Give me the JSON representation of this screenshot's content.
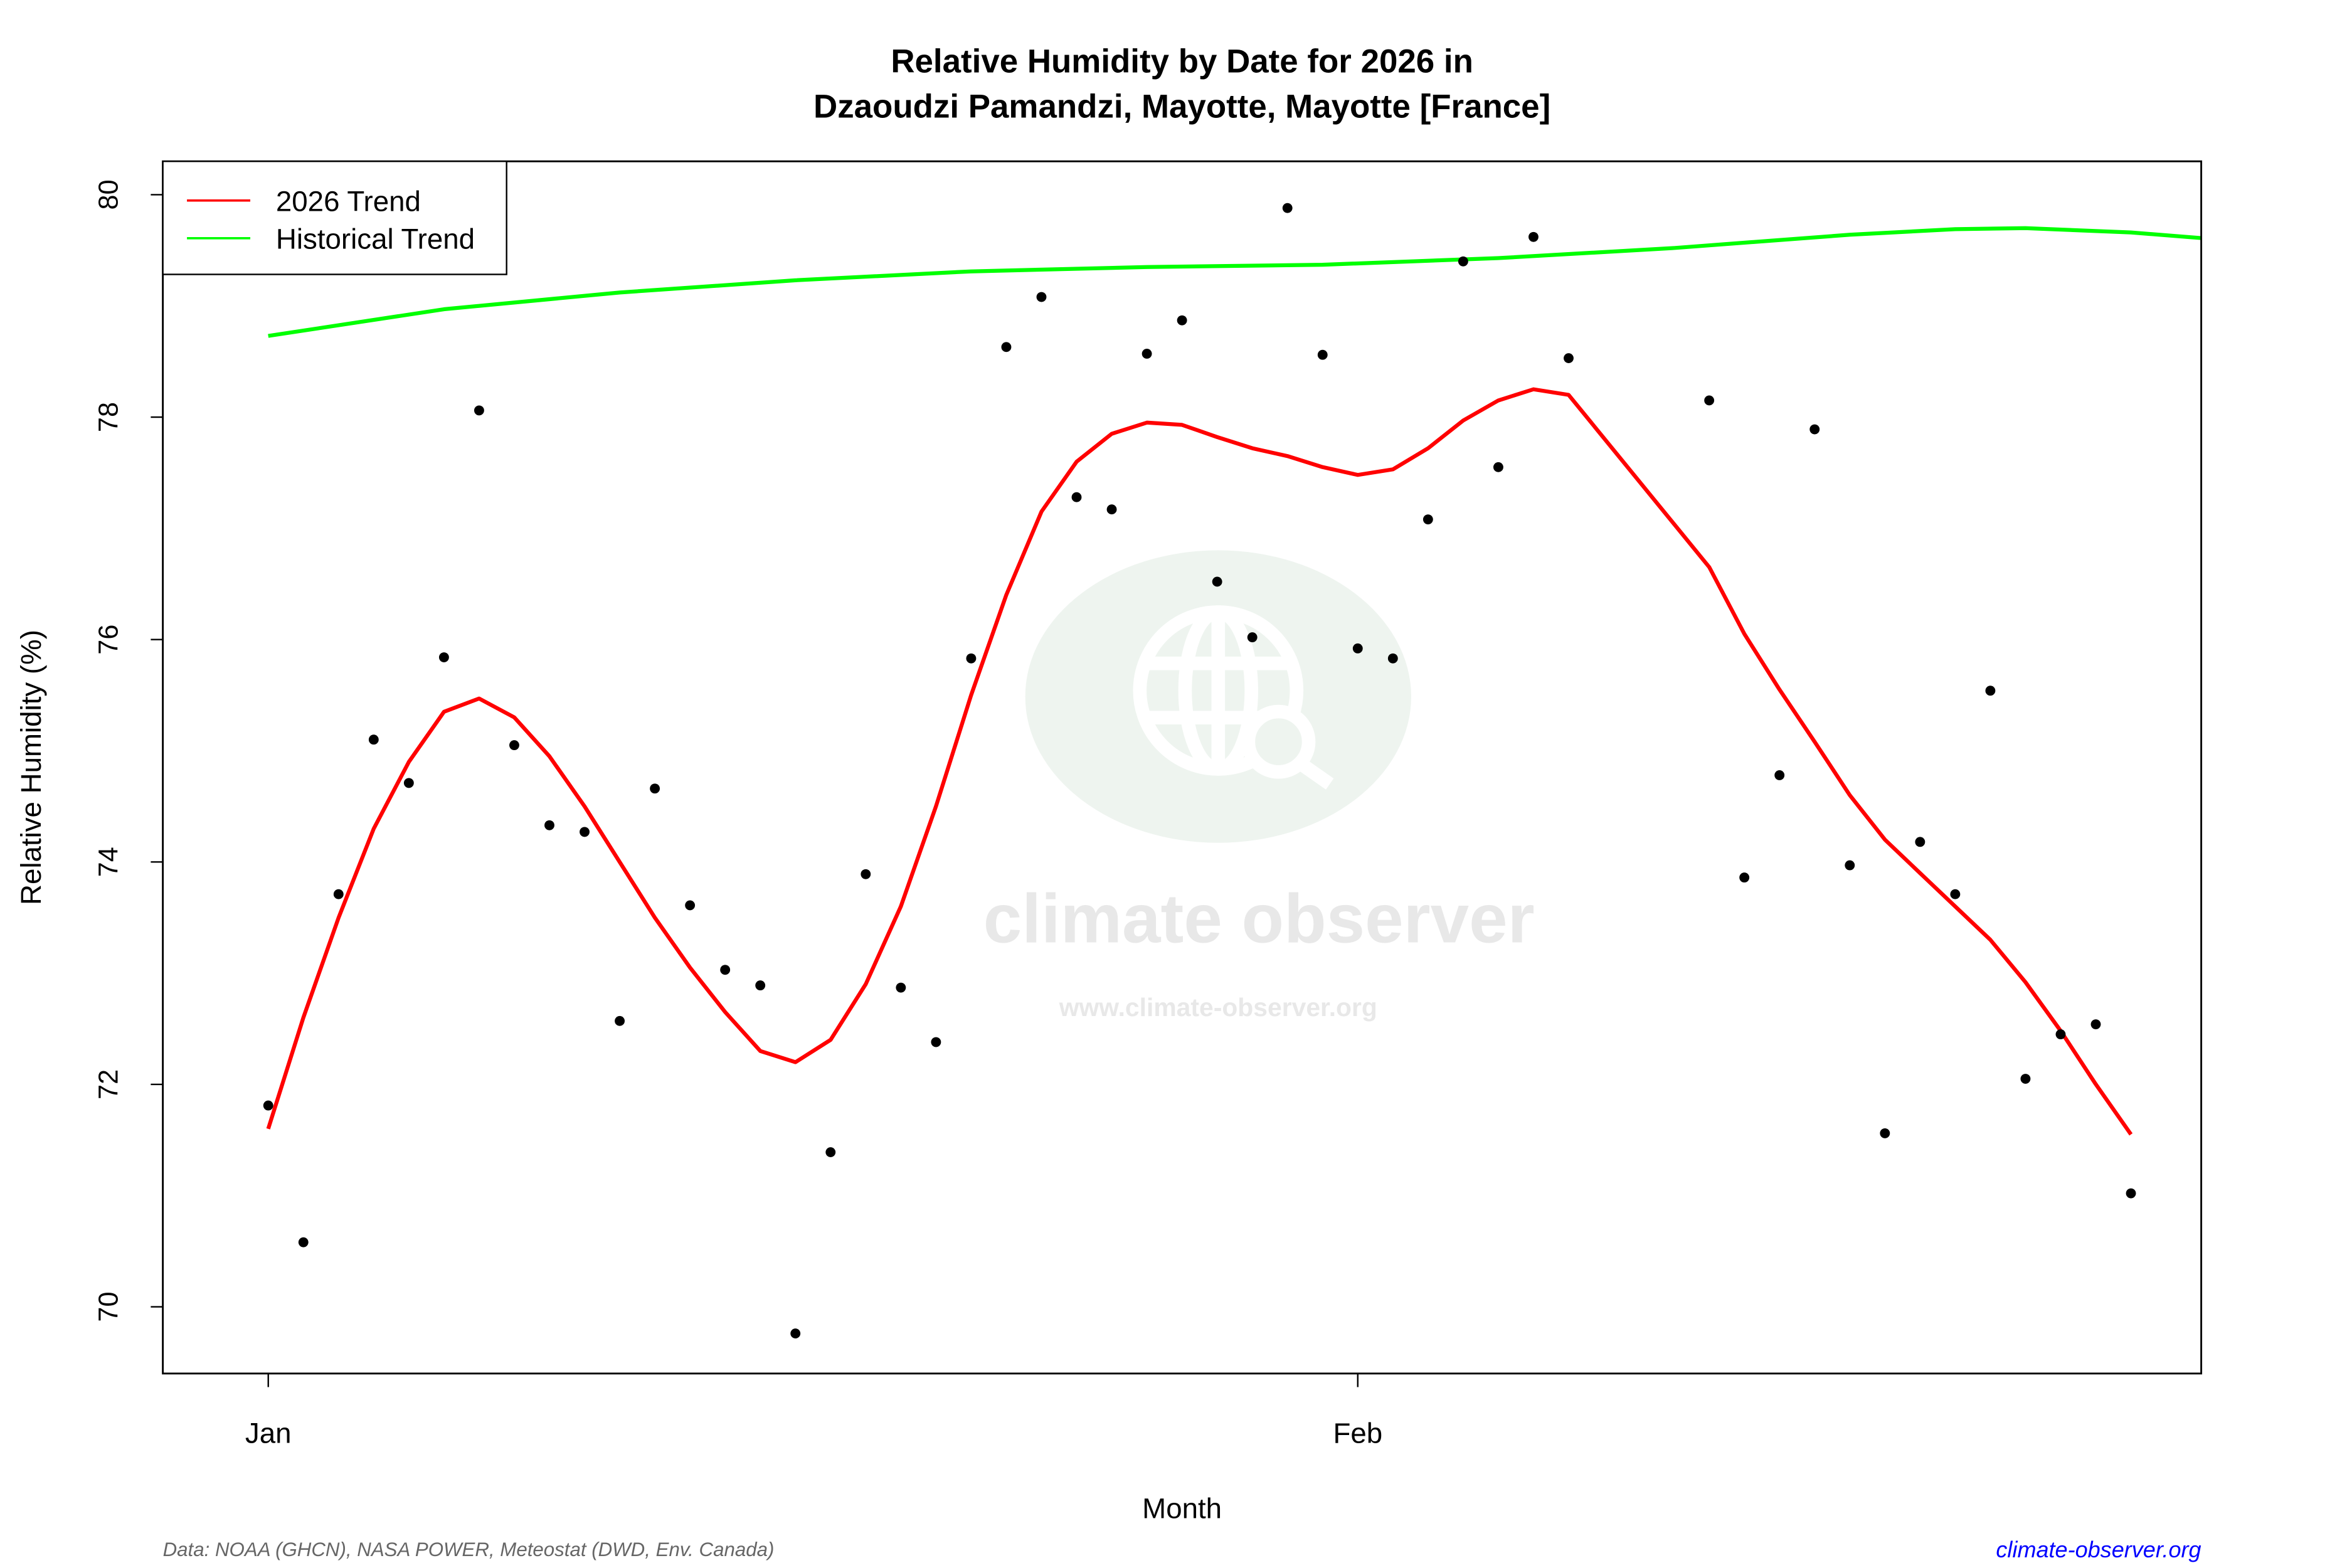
{
  "chart_data": {
    "type": "scatter",
    "title_line1": "Relative Humidity by Date for 2026 in",
    "title_line2": "Dzaoudzi Pamandzi, Mayotte, Mayotte [France]",
    "xlabel": "Month",
    "ylabel": "Relative Humidity (%)",
    "ylim": [
      69.4,
      80.3
    ],
    "xlim": [
      "2025-12-29",
      "2026-02-25"
    ],
    "y_ticks": [
      "70",
      "72",
      "74",
      "76",
      "78",
      "80"
    ],
    "x_ticks": [
      {
        "label": "Jan",
        "date": "2026-01-01"
      },
      {
        "label": "Feb",
        "date": "2026-02-01"
      }
    ],
    "grid": false,
    "legend_position": "top-left",
    "legend": [
      {
        "label": "2026 Trend",
        "color": "#ff0000"
      },
      {
        "label": "Historical Trend",
        "color": "#00ff00"
      }
    ],
    "points": {
      "color": "#000000",
      "x": [
        "2026-01-01",
        "2026-01-02",
        "2026-01-03",
        "2026-01-04",
        "2026-01-05",
        "2026-01-06",
        "2026-01-07",
        "2026-01-08",
        "2026-01-09",
        "2026-01-10",
        "2026-01-11",
        "2026-01-12",
        "2026-01-13",
        "2026-01-14",
        "2026-01-15",
        "2026-01-16",
        "2026-01-17",
        "2026-01-18",
        "2026-01-19",
        "2026-01-20",
        "2026-01-21",
        "2026-01-22",
        "2026-01-23",
        "2026-01-24",
        "2026-01-25",
        "2026-01-26",
        "2026-01-27",
        "2026-01-28",
        "2026-01-29",
        "2026-01-30",
        "2026-01-31",
        "2026-02-01",
        "2026-02-02",
        "2026-02-03",
        "2026-02-04",
        "2026-02-05",
        "2026-02-06",
        "2026-02-07",
        "2026-02-11",
        "2026-02-12",
        "2026-02-13",
        "2026-02-14",
        "2026-02-15",
        "2026-02-16",
        "2026-02-17",
        "2026-02-18",
        "2026-02-19",
        "2026-02-20",
        "2026-02-21",
        "2026-02-22",
        "2026-02-23"
      ],
      "y": [
        71.81,
        70.58,
        73.71,
        75.1,
        74.71,
        75.84,
        78.06,
        75.05,
        74.33,
        74.27,
        72.57,
        74.66,
        73.61,
        73.03,
        72.89,
        69.76,
        71.39,
        73.89,
        72.87,
        72.38,
        75.83,
        78.63,
        79.08,
        77.28,
        77.17,
        78.57,
        78.87,
        76.52,
        76.02,
        79.88,
        78.56,
        75.92,
        75.83,
        77.08,
        79.4,
        77.55,
        79.62,
        78.53,
        78.15,
        73.86,
        74.78,
        77.89,
        73.97,
        71.56,
        74.18,
        73.71,
        75.54,
        72.05,
        72.45,
        72.54,
        71.02
      ]
    },
    "series": [
      {
        "name": "2026 Trend",
        "color": "#ff0000",
        "x": [
          "2026-01-01",
          "2026-01-02",
          "2026-01-03",
          "2026-01-04",
          "2026-01-05",
          "2026-01-06",
          "2026-01-07",
          "2026-01-08",
          "2026-01-09",
          "2026-01-10",
          "2026-01-11",
          "2026-01-12",
          "2026-01-13",
          "2026-01-14",
          "2026-01-15",
          "2026-01-16",
          "2026-01-17",
          "2026-01-18",
          "2026-01-19",
          "2026-01-20",
          "2026-01-21",
          "2026-01-22",
          "2026-01-23",
          "2026-01-24",
          "2026-01-25",
          "2026-01-26",
          "2026-01-27",
          "2026-01-28",
          "2026-01-29",
          "2026-01-30",
          "2026-01-31",
          "2026-02-01",
          "2026-02-02",
          "2026-02-03",
          "2026-02-04",
          "2026-02-05",
          "2026-02-06",
          "2026-02-07",
          "2026-02-11",
          "2026-02-12",
          "2026-02-13",
          "2026-02-14",
          "2026-02-15",
          "2026-02-16",
          "2026-02-17",
          "2026-02-18",
          "2026-02-19",
          "2026-02-20",
          "2026-02-21",
          "2026-02-22",
          "2026-02-23"
        ],
        "y": [
          71.6,
          72.6,
          73.5,
          74.3,
          74.9,
          75.35,
          75.47,
          75.3,
          74.95,
          74.5,
          74.0,
          73.5,
          73.05,
          72.65,
          72.3,
          72.2,
          72.4,
          72.9,
          73.6,
          74.5,
          75.5,
          76.4,
          77.15,
          77.6,
          77.85,
          77.95,
          77.93,
          77.82,
          77.72,
          77.65,
          77.55,
          77.48,
          77.53,
          77.72,
          77.97,
          78.15,
          78.25,
          78.2,
          76.65,
          76.05,
          75.55,
          75.08,
          74.6,
          74.2,
          73.9,
          73.6,
          73.3,
          72.92,
          72.48,
          72.0,
          71.55
        ]
      },
      {
        "name": "Historical Trend",
        "color": "#00ff00",
        "x": [
          "2026-01-01",
          "2026-01-06",
          "2026-01-11",
          "2026-01-16",
          "2026-01-21",
          "2026-01-26",
          "2026-01-31",
          "2026-02-05",
          "2026-02-10",
          "2026-02-15",
          "2026-02-18",
          "2026-02-20",
          "2026-02-23",
          "2026-02-25"
        ],
        "y": [
          78.73,
          78.97,
          79.12,
          79.23,
          79.31,
          79.35,
          79.37,
          79.43,
          79.52,
          79.64,
          79.69,
          79.7,
          79.66,
          79.61
        ]
      }
    ]
  },
  "footer": {
    "source": "Data: NOAA (GHCN), NASA POWER, Meteostat (DWD, Env. Canada)",
    "site": "climate-observer.org",
    "site_color": "#0000ff"
  },
  "watermark": {
    "name": "climate observer",
    "url": "www.climate-observer.org",
    "icon": "globe-search-icon"
  }
}
